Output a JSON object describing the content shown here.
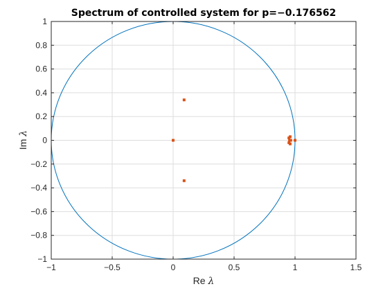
{
  "chart_data": {
    "type": "scatter",
    "title": "Spectrum of controlled system for p=−0.176562",
    "xlabel": {
      "prefix": "Re ",
      "symbol": "λ"
    },
    "ylabel": {
      "prefix": "Im ",
      "symbol": "λ"
    },
    "xlim": [
      -1,
      1.5
    ],
    "ylim": [
      -1,
      1
    ],
    "xticks": [
      -1,
      -0.5,
      0,
      0.5,
      1,
      1.5
    ],
    "xtick_labels": [
      "−1",
      "−0.5",
      "0",
      "0.5",
      "1",
      "1.5"
    ],
    "yticks": [
      -1,
      -0.8,
      -0.6,
      -0.4,
      -0.2,
      0,
      0.2,
      0.4,
      0.6,
      0.8,
      1
    ],
    "ytick_labels": [
      "−1",
      "−0.8",
      "−0.6",
      "−0.4",
      "−0.2",
      "0",
      "0.2",
      "0.4",
      "0.6",
      "0.8",
      "1"
    ],
    "grid": true,
    "unit_circle": {
      "center": [
        0,
        0
      ],
      "radius": 1
    },
    "points": [
      {
        "x": 0.09,
        "y": 0.34
      },
      {
        "x": 0.09,
        "y": -0.34
      },
      {
        "x": 0.0,
        "y": 0.0
      },
      {
        "x": 0.95,
        "y": 0.02
      },
      {
        "x": 0.95,
        "y": -0.02
      },
      {
        "x": 0.96,
        "y": 0.03
      },
      {
        "x": 0.96,
        "y": -0.03
      },
      {
        "x": 0.955,
        "y": 0.0
      },
      {
        "x": 0.965,
        "y": 0.0
      },
      {
        "x": 1.0,
        "y": 0.0
      }
    ],
    "colors": {
      "circle": "#0072BD",
      "points": "#D95319",
      "grid": "#DDDDDD",
      "axis": "#262626"
    }
  }
}
